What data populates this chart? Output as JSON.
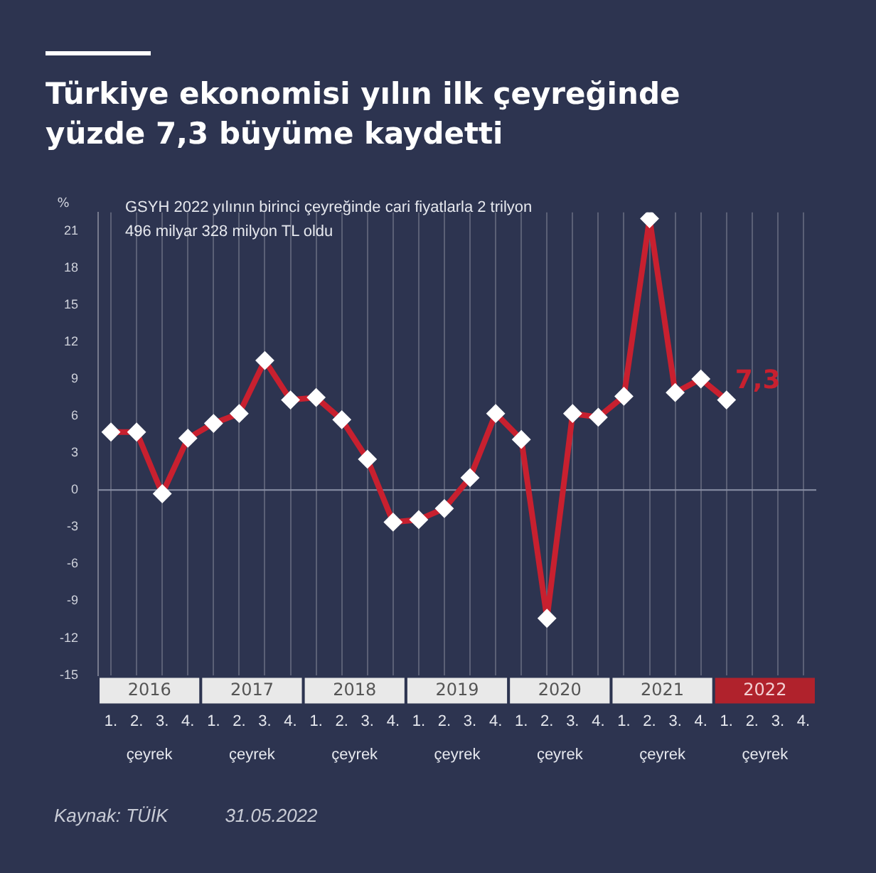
{
  "chart_data": {
    "type": "line",
    "title": "Türkiye ekonomisi yılın ilk çeyreğinde yüzde 7,3 büyüme kaydetti",
    "subtitle": "GSYH 2022 yılının birinci çeyreğinde cari fiyatlarla 2 trilyon 496 milyar 328 milyon TL oldu",
    "ylabel": "%",
    "categories": [
      "1.",
      "2.",
      "3.",
      "4.",
      "1.",
      "2.",
      "3.",
      "4.",
      "1.",
      "2.",
      "3.",
      "4.",
      "1.",
      "2.",
      "3.",
      "4.",
      "1.",
      "2.",
      "3.",
      "4.",
      "1.",
      "2.",
      "3.",
      "4.",
      "1.",
      "2.",
      "3.",
      "4."
    ],
    "series": [
      {
        "color": "#c8202f",
        "values": [
          4.7,
          4.7,
          -0.3,
          4.2,
          5.4,
          6.2,
          10.5,
          7.3,
          7.5,
          5.7,
          2.5,
          -2.6,
          -2.4,
          -1.5,
          1.0,
          6.2,
          4.1,
          -10.4,
          6.2,
          5.9,
          7.6,
          22.0,
          7.9,
          9.0,
          7.3,
          null,
          null,
          null
        ],
        "value_labels": [
          null,
          null,
          null,
          null,
          null,
          null,
          null,
          null,
          null,
          null,
          null,
          null,
          null,
          null,
          null,
          null,
          null,
          null,
          null,
          null,
          null,
          null,
          null,
          null,
          "7,3",
          null,
          null,
          null
        ]
      }
    ],
    "ylim": [
      -15,
      22.5
    ],
    "yticks": [
      -15,
      -12,
      -9,
      -6,
      -3,
      0,
      3,
      6,
      9,
      12,
      15,
      18,
      21
    ],
    "grid": "x",
    "marker": "diamond",
    "line_style": "solid",
    "legend": false,
    "ref_lines": [
      {
        "axis": "y",
        "value": 0,
        "color": "#8a90a6"
      }
    ],
    "annotations": [
      "2016",
      "2017",
      "2018",
      "2019",
      "2020",
      "2021",
      "2022",
      "çeyrek",
      "çeyrek",
      "çeyrek",
      "çeyrek",
      "çeyrek",
      "çeyrek",
      "çeyrek",
      "Kaynak: TÜİK",
      "31.05.2022"
    ]
  }
}
